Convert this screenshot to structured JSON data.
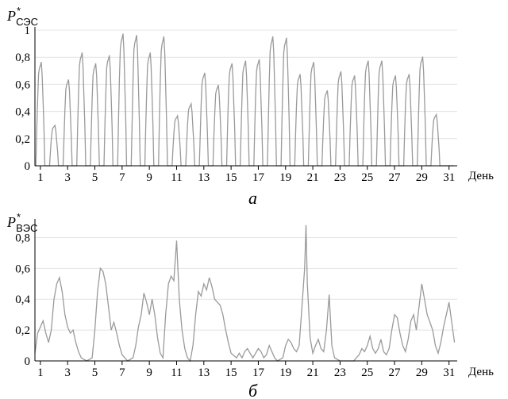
{
  "chart_data": [
    {
      "type": "line",
      "ylabel_main": "P",
      "ylabel_star": "*",
      "ylabel_sub": "СЭС",
      "xlabel": "День",
      "caption": "а",
      "ylim": [
        0,
        1
      ],
      "xlim": [
        0.6,
        31.6
      ],
      "y_ticks": [
        "0",
        "0,2",
        "0,4",
        "0,6",
        "0,8",
        "1"
      ],
      "x_ticks": [
        "1",
        "3",
        "5",
        "7",
        "9",
        "11",
        "13",
        "15",
        "17",
        "19",
        "21",
        "23",
        "25",
        "27",
        "29",
        "31"
      ],
      "grid": true,
      "series_color": "#9a9a9a",
      "daily_peaks": [
        0.77,
        0.3,
        0.64,
        0.84,
        0.76,
        0.82,
        0.98,
        0.97,
        0.84,
        0.96,
        0.37,
        0.46,
        0.69,
        0.6,
        0.76,
        0.78,
        0.79,
        0.96,
        0.95,
        0.68,
        0.77,
        0.56,
        0.7,
        0.67,
        0.78,
        0.78,
        0.67,
        0.68,
        0.81,
        0.38,
        0.0
      ]
    },
    {
      "type": "line",
      "ylabel_main": "P",
      "ylabel_star": "*",
      "ylabel_sub": "ВЭС",
      "xlabel": "День",
      "caption": "б",
      "ylim": [
        0,
        0.9
      ],
      "xlim": [
        0.6,
        31.6
      ],
      "y_ticks": [
        "0",
        "0,2",
        "0,4",
        "0,6",
        "0,8"
      ],
      "x_ticks": [
        "1",
        "3",
        "5",
        "7",
        "9",
        "11",
        "13",
        "15",
        "17",
        "19",
        "21",
        "23",
        "25",
        "27",
        "29",
        "31"
      ],
      "grid": true,
      "series_color": "#9a9a9a",
      "points": [
        [
          0.6,
          0.05
        ],
        [
          0.8,
          0.18
        ],
        [
          1.0,
          0.22
        ],
        [
          1.2,
          0.26
        ],
        [
          1.4,
          0.18
        ],
        [
          1.6,
          0.12
        ],
        [
          1.8,
          0.2
        ],
        [
          2.0,
          0.4
        ],
        [
          2.2,
          0.5
        ],
        [
          2.4,
          0.54
        ],
        [
          2.6,
          0.45
        ],
        [
          2.8,
          0.3
        ],
        [
          3.0,
          0.22
        ],
        [
          3.2,
          0.18
        ],
        [
          3.4,
          0.2
        ],
        [
          3.6,
          0.12
        ],
        [
          3.8,
          0.06
        ],
        [
          4.0,
          0.02
        ],
        [
          4.4,
          0.0
        ],
        [
          4.8,
          0.02
        ],
        [
          5.0,
          0.2
        ],
        [
          5.2,
          0.45
        ],
        [
          5.4,
          0.6
        ],
        [
          5.6,
          0.58
        ],
        [
          5.8,
          0.5
        ],
        [
          6.0,
          0.35
        ],
        [
          6.2,
          0.2
        ],
        [
          6.4,
          0.25
        ],
        [
          6.6,
          0.18
        ],
        [
          6.8,
          0.1
        ],
        [
          7.0,
          0.04
        ],
        [
          7.4,
          0.0
        ],
        [
          7.8,
          0.02
        ],
        [
          8.0,
          0.1
        ],
        [
          8.2,
          0.22
        ],
        [
          8.4,
          0.3
        ],
        [
          8.6,
          0.44
        ],
        [
          8.8,
          0.38
        ],
        [
          9.0,
          0.3
        ],
        [
          9.2,
          0.4
        ],
        [
          9.4,
          0.3
        ],
        [
          9.6,
          0.15
        ],
        [
          9.8,
          0.05
        ],
        [
          10.0,
          0.02
        ],
        [
          10.2,
          0.3
        ],
        [
          10.4,
          0.5
        ],
        [
          10.6,
          0.55
        ],
        [
          10.8,
          0.52
        ],
        [
          11.0,
          0.78
        ],
        [
          11.2,
          0.4
        ],
        [
          11.4,
          0.2
        ],
        [
          11.6,
          0.08
        ],
        [
          11.8,
          0.02
        ],
        [
          12.0,
          0.0
        ],
        [
          12.2,
          0.1
        ],
        [
          12.4,
          0.3
        ],
        [
          12.6,
          0.45
        ],
        [
          12.8,
          0.42
        ],
        [
          13.0,
          0.5
        ],
        [
          13.2,
          0.46
        ],
        [
          13.4,
          0.54
        ],
        [
          13.6,
          0.48
        ],
        [
          13.8,
          0.4
        ],
        [
          14.0,
          0.38
        ],
        [
          14.2,
          0.36
        ],
        [
          14.4,
          0.3
        ],
        [
          14.6,
          0.2
        ],
        [
          14.8,
          0.12
        ],
        [
          15.0,
          0.05
        ],
        [
          15.4,
          0.02
        ],
        [
          15.6,
          0.05
        ],
        [
          15.8,
          0.02
        ],
        [
          16.0,
          0.06
        ],
        [
          16.2,
          0.08
        ],
        [
          16.4,
          0.05
        ],
        [
          16.6,
          0.02
        ],
        [
          16.8,
          0.05
        ],
        [
          17.0,
          0.08
        ],
        [
          17.2,
          0.06
        ],
        [
          17.4,
          0.02
        ],
        [
          17.6,
          0.04
        ],
        [
          17.8,
          0.1
        ],
        [
          18.0,
          0.06
        ],
        [
          18.2,
          0.02
        ],
        [
          18.4,
          0.0
        ],
        [
          18.8,
          0.02
        ],
        [
          19.0,
          0.1
        ],
        [
          19.2,
          0.14
        ],
        [
          19.4,
          0.12
        ],
        [
          19.6,
          0.08
        ],
        [
          19.8,
          0.06
        ],
        [
          20.0,
          0.1
        ],
        [
          20.2,
          0.35
        ],
        [
          20.4,
          0.6
        ],
        [
          20.5,
          0.88
        ],
        [
          20.6,
          0.5
        ],
        [
          20.8,
          0.15
        ],
        [
          21.0,
          0.05
        ],
        [
          21.2,
          0.1
        ],
        [
          21.4,
          0.14
        ],
        [
          21.6,
          0.08
        ],
        [
          21.8,
          0.06
        ],
        [
          22.0,
          0.2
        ],
        [
          22.2,
          0.43
        ],
        [
          22.4,
          0.1
        ],
        [
          22.6,
          0.02
        ],
        [
          23.0,
          0.0
        ],
        [
          24.0,
          0.0
        ],
        [
          24.4,
          0.04
        ],
        [
          24.6,
          0.08
        ],
        [
          24.8,
          0.06
        ],
        [
          25.0,
          0.1
        ],
        [
          25.2,
          0.16
        ],
        [
          25.4,
          0.08
        ],
        [
          25.6,
          0.05
        ],
        [
          25.8,
          0.08
        ],
        [
          26.0,
          0.14
        ],
        [
          26.2,
          0.06
        ],
        [
          26.4,
          0.04
        ],
        [
          26.6,
          0.08
        ],
        [
          26.8,
          0.2
        ],
        [
          27.0,
          0.3
        ],
        [
          27.2,
          0.28
        ],
        [
          27.4,
          0.18
        ],
        [
          27.6,
          0.1
        ],
        [
          27.8,
          0.06
        ],
        [
          28.0,
          0.14
        ],
        [
          28.2,
          0.26
        ],
        [
          28.4,
          0.3
        ],
        [
          28.6,
          0.2
        ],
        [
          28.8,
          0.35
        ],
        [
          29.0,
          0.5
        ],
        [
          29.2,
          0.4
        ],
        [
          29.4,
          0.3
        ],
        [
          29.6,
          0.25
        ],
        [
          29.8,
          0.2
        ],
        [
          30.0,
          0.1
        ],
        [
          30.2,
          0.05
        ],
        [
          30.4,
          0.12
        ],
        [
          30.6,
          0.22
        ],
        [
          30.8,
          0.3
        ],
        [
          31.0,
          0.38
        ],
        [
          31.2,
          0.25
        ],
        [
          31.4,
          0.12
        ]
      ]
    }
  ]
}
